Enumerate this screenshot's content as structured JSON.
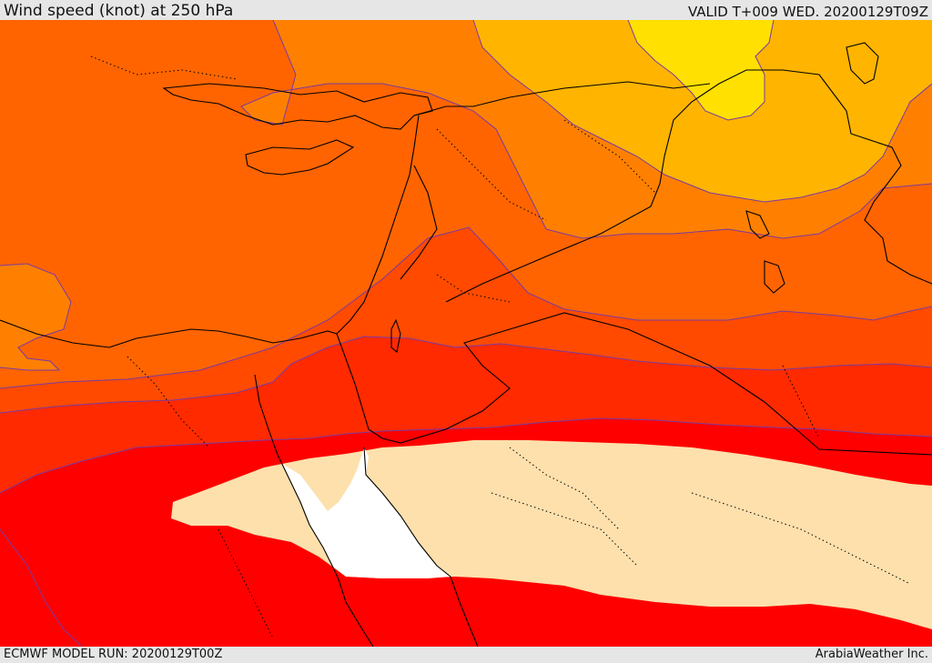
{
  "header": {
    "title": "Wind speed (knot) at 250 hPa",
    "valid": "VALID T+009 WED. 20200129T09Z"
  },
  "footer": {
    "model_run": "ECMWF MODEL RUN: 20200129T00Z",
    "credit": "ArabiaWeather Inc."
  },
  "map": {
    "colors": {
      "band_lightest_yellow": "#ffe000",
      "band_yellow_orange": "#ffb400",
      "band_light_orange": "#ff8000",
      "band_orange": "#ff6400",
      "band_dark_orange": "#ff4a00",
      "band_red_orange": "#ff2a00",
      "band_red": "#ff0000",
      "band_max_wheat": "#fde0ac",
      "contour_line": "#7a3aa0",
      "coastline": "#000000"
    }
  }
}
